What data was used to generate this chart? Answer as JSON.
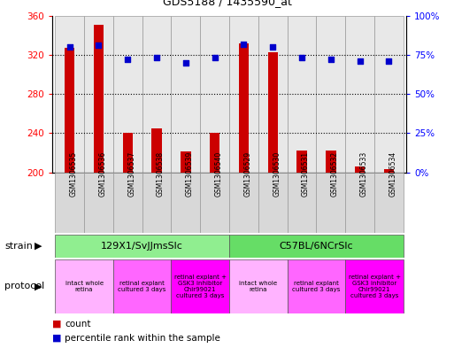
{
  "title": "GDS5188 / 1435590_at",
  "samples": [
    "GSM1306535",
    "GSM1306536",
    "GSM1306537",
    "GSM1306538",
    "GSM1306539",
    "GSM1306540",
    "GSM1306529",
    "GSM1306530",
    "GSM1306531",
    "GSM1306532",
    "GSM1306533",
    "GSM1306534"
  ],
  "counts": [
    327,
    351,
    240,
    245,
    221,
    240,
    332,
    323,
    222,
    222,
    206,
    203
  ],
  "percentiles": [
    80,
    81,
    72,
    73,
    70,
    73,
    82,
    80,
    73,
    72,
    71,
    71
  ],
  "ylim_left": [
    200,
    360
  ],
  "ylim_right": [
    0,
    100
  ],
  "yticks_left": [
    200,
    240,
    280,
    320,
    360
  ],
  "yticks_right": [
    0,
    25,
    50,
    75,
    100
  ],
  "bar_color": "#cc0000",
  "dot_color": "#0000cc",
  "bg_color": "#ffffff",
  "plot_bg": "#ffffff",
  "strain_groups": [
    {
      "label": "129X1/SvJJmsSlc",
      "start": 0,
      "end": 5,
      "color": "#90ee90"
    },
    {
      "label": "C57BL/6NCrSlc",
      "start": 6,
      "end": 11,
      "color": "#66dd66"
    }
  ],
  "protocol_groups": [
    {
      "label": "intact whole\nretina",
      "start": 0,
      "end": 1,
      "color": "#ffb3ff"
    },
    {
      "label": "retinal explant\ncultured 3 days",
      "start": 2,
      "end": 3,
      "color": "#ff66ff"
    },
    {
      "label": "retinal explant +\nGSK3 inhibitor\nChir99021\ncultured 3 days",
      "start": 4,
      "end": 5,
      "color": "#ff00ff"
    },
    {
      "label": "intact whole\nretina",
      "start": 6,
      "end": 7,
      "color": "#ffb3ff"
    },
    {
      "label": "retinal explant\ncultured 3 days",
      "start": 8,
      "end": 9,
      "color": "#ff66ff"
    },
    {
      "label": "retinal explant +\nGSK3 inhibitor\nChir99021\ncultured 3 days",
      "start": 10,
      "end": 11,
      "color": "#ff00ff"
    }
  ],
  "count_label": "count",
  "percentile_label": "percentile rank within the sample",
  "grid_yticks": [
    240,
    280,
    320
  ],
  "bar_width": 0.35
}
